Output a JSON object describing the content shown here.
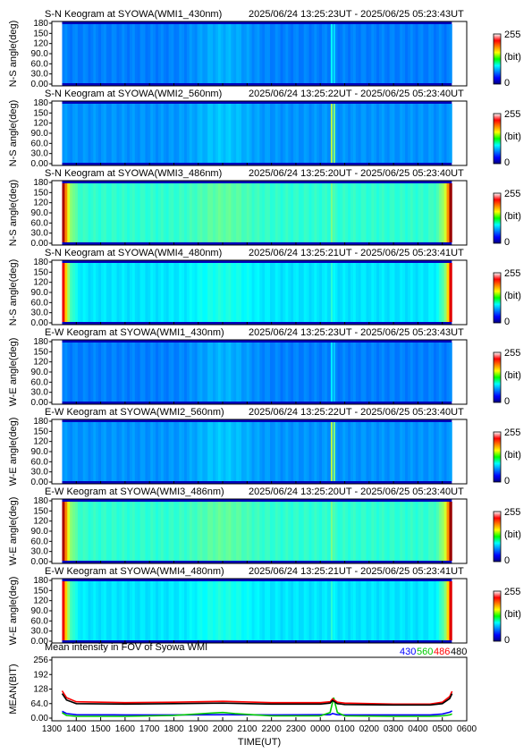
{
  "chart_data": {
    "type": "heatmap",
    "keograms": [
      {
        "title": "S-N Keogram at SYOWA(WMI1_430nm)",
        "time_range": "2025/06/24 13:25:23UT - 2025/06/25 05:23:43UT",
        "ylabel": "N-S angle(deg)",
        "base": 0.25,
        "edge": 0.0,
        "streak": 0.38
      },
      {
        "title": "S-N Keogram at SYOWA(WMI2_560nm)",
        "time_range": "2025/06/24 13:25:22UT - 2025/06/25 05:23:40UT",
        "ylabel": "N-S angle(deg)",
        "base": 0.27,
        "edge": 0.0,
        "streak": 0.56
      },
      {
        "title": "S-N Keogram at SYOWA(WMI3_486nm)",
        "time_range": "2025/06/24 13:25:20UT - 2025/06/25 05:23:40UT",
        "ylabel": "N-S angle(deg)",
        "base": 0.42,
        "edge": 0.6,
        "streak": 0.5
      },
      {
        "title": "S-N Keogram at SYOWA(WMI4_480nm)",
        "time_range": "2025/06/24 13:25:21UT - 2025/06/25 05:23:41UT",
        "ylabel": "N-S angle(deg)",
        "base": 0.35,
        "edge": 0.6,
        "streak": 0.42
      },
      {
        "title": "E-W Keogram at SYOWA(WMI1_430nm)",
        "time_range": "2025/06/24 13:25:23UT - 2025/06/25 05:23:43UT",
        "ylabel": "W-E angle(deg)",
        "base": 0.25,
        "edge": 0.0,
        "streak": 0.36
      },
      {
        "title": "E-W Keogram at SYOWA(WMI2_560nm)",
        "time_range": "2025/06/24 13:25:22UT - 2025/06/25 05:23:40UT",
        "ylabel": "W-E angle(deg)",
        "base": 0.27,
        "edge": 0.0,
        "streak": 0.56
      },
      {
        "title": "E-W Keogram at SYOWA(WMI3_486nm)",
        "time_range": "2025/06/24 13:25:20UT - 2025/06/25 05:23:40UT",
        "ylabel": "W-E angle(deg)",
        "base": 0.42,
        "edge": 0.6,
        "streak": 0.5
      },
      {
        "title": "E-W Keogram at SYOWA(WMI4_480nm)",
        "time_range": "2025/06/24 13:25:21UT - 2025/06/25 05:23:41UT",
        "ylabel": "W-E angle(deg)",
        "base": 0.35,
        "edge": 0.6,
        "streak": 0.42
      }
    ],
    "keogram_yticks": [
      "0.00",
      "30.0",
      "60.0",
      "90.0",
      "120",
      "150",
      "180"
    ],
    "keogram_ylim": [
      0,
      180
    ],
    "colorbar": {
      "max_label": "255",
      "min_label": "0",
      "unit_label": "(bit)",
      "range": [
        0,
        255
      ]
    },
    "mean_panel": {
      "type": "line",
      "title": "Mean intensity in FOV of Syowa WMI",
      "ylabel": "MEAN(BIT)",
      "xlabel": "TIME(UT)",
      "ylim": [
        0,
        256
      ],
      "yticks": [
        "0.00",
        "64.0",
        "128",
        "192",
        "256"
      ],
      "xticks": [
        "1300",
        "1400",
        "1500",
        "1600",
        "1700",
        "1800",
        "1900",
        "2000",
        "2100",
        "2200",
        "2300",
        "0000",
        "0100",
        "0200",
        "0300",
        "0400",
        "0500",
        "0600"
      ],
      "series": [
        {
          "name": "430",
          "color": "#0000ff",
          "t": [
            13.42,
            13.6,
            14.0,
            16.0,
            18.0,
            20.0,
            22.0,
            24.0,
            24.4,
            24.5,
            24.7,
            25.0,
            27.0,
            28.5,
            29.0,
            29.3,
            29.4
          ],
          "y": [
            30,
            20,
            15,
            14,
            14,
            15,
            14,
            15,
            15,
            20,
            15,
            14,
            14,
            14,
            18,
            26,
            32
          ]
        },
        {
          "name": "560",
          "color": "#00cc00",
          "t": [
            13.42,
            13.6,
            14.0,
            16.0,
            18.0,
            19.5,
            20.0,
            20.5,
            22.0,
            24.0,
            24.4,
            24.55,
            24.7,
            25.0,
            27.0,
            28.5,
            29.0,
            29.3,
            29.4
          ],
          "y": [
            24,
            12,
            8,
            8,
            12,
            22,
            25,
            20,
            10,
            10,
            25,
            90,
            25,
            10,
            8,
            8,
            10,
            14,
            18
          ]
        },
        {
          "name": "486",
          "color": "#ff0000",
          "t": [
            13.42,
            13.6,
            14.0,
            16.0,
            18.0,
            20.0,
            22.0,
            24.0,
            24.4,
            24.5,
            24.7,
            25.0,
            27.0,
            28.5,
            29.0,
            29.3,
            29.4
          ],
          "y": [
            120,
            90,
            72,
            68,
            70,
            74,
            68,
            68,
            72,
            85,
            70,
            66,
            62,
            62,
            70,
            95,
            118
          ]
        },
        {
          "name": "480",
          "color": "#000000",
          "t": [
            13.42,
            13.6,
            14.0,
            16.0,
            18.0,
            20.0,
            22.0,
            24.0,
            24.4,
            24.5,
            24.7,
            25.0,
            27.0,
            28.5,
            29.0,
            29.3,
            29.4
          ],
          "y": [
            108,
            80,
            64,
            62,
            64,
            66,
            62,
            62,
            66,
            78,
            64,
            60,
            58,
            58,
            64,
            86,
            108
          ]
        }
      ]
    },
    "time_axis": {
      "start_hour": 13,
      "end_hour": 30,
      "data_start": 13.42,
      "data_end": 29.39,
      "streak_time": 24.5
    }
  }
}
